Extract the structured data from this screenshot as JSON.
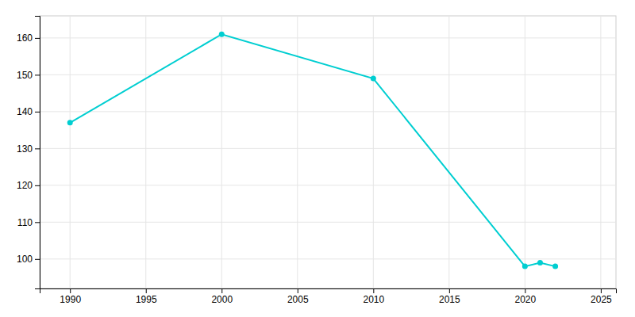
{
  "chart_data": {
    "type": "line",
    "x": [
      1990,
      2000,
      2010,
      2020,
      2021,
      2022
    ],
    "values": [
      137,
      161,
      149,
      98,
      99,
      98
    ],
    "color": "#00CED1",
    "marker": "circle",
    "xlim": [
      1988,
      2026
    ],
    "ylim": [
      92,
      166
    ],
    "xticks": [
      1990,
      1995,
      2000,
      2005,
      2010,
      2015,
      2020,
      2025
    ],
    "yticks": [
      100,
      110,
      120,
      130,
      140,
      150,
      160
    ],
    "grid": true
  }
}
